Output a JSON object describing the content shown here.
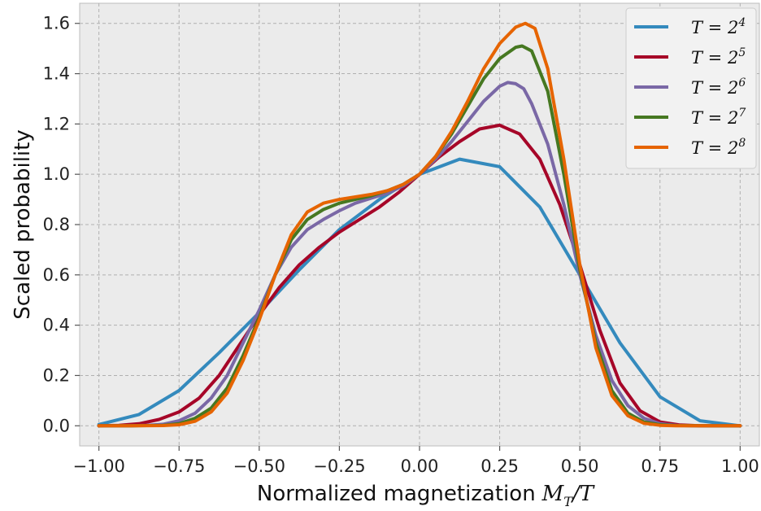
{
  "chart_data": {
    "type": "line",
    "xlabel": "Normalized magnetization",
    "xlabel_math": "M_T/T",
    "ylabel": "Scaled probability",
    "xlim": [
      -1.06,
      1.06
    ],
    "ylim": [
      -0.08,
      1.68
    ],
    "xticks": [
      -1.0,
      -0.75,
      -0.5,
      -0.25,
      0.0,
      0.25,
      0.5,
      0.75,
      1.0
    ],
    "xtick_labels": [
      "−1.00",
      "−0.75",
      "−0.50",
      "−0.25",
      "0.00",
      "0.25",
      "0.50",
      "0.75",
      "1.00"
    ],
    "yticks": [
      0.0,
      0.2,
      0.4,
      0.6,
      0.8,
      1.0,
      1.2,
      1.4,
      1.6
    ],
    "ytick_labels": [
      "0.0",
      "0.2",
      "0.4",
      "0.6",
      "0.8",
      "1.0",
      "1.2",
      "1.4",
      "1.6"
    ],
    "grid": true,
    "legend_position": "top-right",
    "background": "#ebebeb",
    "series": [
      {
        "name": "T = 2^4",
        "legend_base": "T = 2",
        "legend_exp": "4",
        "color": "#348abd",
        "x": [
          -1.0,
          -0.875,
          -0.75,
          -0.625,
          -0.5,
          -0.375,
          -0.25,
          -0.125,
          0.0,
          0.125,
          0.25,
          0.375,
          0.5,
          0.625,
          0.75,
          0.875,
          1.0
        ],
        "y": [
          0.005,
          0.045,
          0.14,
          0.29,
          0.45,
          0.62,
          0.78,
          0.9,
          1.0,
          1.06,
          1.03,
          0.87,
          0.6,
          0.33,
          0.115,
          0.02,
          0.0
        ]
      },
      {
        "name": "T = 2^5",
        "legend_base": "T = 2",
        "legend_exp": "5",
        "color": "#a60628",
        "x": [
          -1.0,
          -0.9375,
          -0.875,
          -0.8125,
          -0.75,
          -0.6875,
          -0.625,
          -0.5625,
          -0.5,
          -0.4375,
          -0.375,
          -0.3125,
          -0.25,
          -0.1875,
          -0.125,
          -0.0625,
          0.0,
          0.0625,
          0.125,
          0.1875,
          0.25,
          0.3125,
          0.375,
          0.4375,
          0.5,
          0.5625,
          0.625,
          0.6875,
          0.75,
          0.8125,
          0.875,
          0.9375,
          1.0
        ],
        "y": [
          0.0,
          0.002,
          0.008,
          0.025,
          0.055,
          0.11,
          0.2,
          0.32,
          0.44,
          0.55,
          0.64,
          0.71,
          0.77,
          0.82,
          0.87,
          0.93,
          1.0,
          1.07,
          1.13,
          1.18,
          1.195,
          1.16,
          1.06,
          0.88,
          0.64,
          0.38,
          0.17,
          0.06,
          0.015,
          0.003,
          0.0,
          0.0,
          0.0
        ]
      },
      {
        "name": "T = 2^6",
        "legend_base": "T = 2",
        "legend_exp": "6",
        "color": "#7a68a6",
        "x": [
          -1.0,
          -0.95,
          -0.9,
          -0.85,
          -0.8,
          -0.75,
          -0.7,
          -0.65,
          -0.6,
          -0.55,
          -0.5,
          -0.45,
          -0.4,
          -0.35,
          -0.3,
          -0.25,
          -0.2,
          -0.15,
          -0.1,
          -0.05,
          0.0,
          0.05,
          0.1,
          0.15,
          0.2,
          0.25,
          0.275,
          0.3,
          0.325,
          0.35,
          0.4,
          0.45,
          0.5,
          0.55,
          0.6,
          0.65,
          0.7,
          0.75,
          0.8,
          0.85,
          0.9,
          0.95,
          1.0
        ],
        "y": [
          0.0,
          0.0,
          0.0,
          0.002,
          0.006,
          0.02,
          0.05,
          0.11,
          0.2,
          0.33,
          0.46,
          0.6,
          0.71,
          0.78,
          0.82,
          0.855,
          0.885,
          0.905,
          0.925,
          0.955,
          1.0,
          1.06,
          1.13,
          1.21,
          1.29,
          1.35,
          1.365,
          1.36,
          1.34,
          1.28,
          1.12,
          0.88,
          0.6,
          0.36,
          0.18,
          0.08,
          0.03,
          0.008,
          0.002,
          0.0,
          0.0,
          0.0,
          0.0
        ]
      },
      {
        "name": "T = 2^7",
        "legend_base": "T = 2",
        "legend_exp": "7",
        "color": "#467821",
        "x": [
          -1.0,
          -0.9,
          -0.8,
          -0.75,
          -0.7,
          -0.65,
          -0.6,
          -0.55,
          -0.5,
          -0.45,
          -0.4,
          -0.35,
          -0.3,
          -0.25,
          -0.2,
          -0.15,
          -0.1,
          -0.05,
          0.0,
          0.05,
          0.1,
          0.15,
          0.2,
          0.25,
          0.3,
          0.32,
          0.35,
          0.4,
          0.45,
          0.5,
          0.55,
          0.6,
          0.65,
          0.7,
          0.75,
          0.8,
          0.9,
          1.0
        ],
        "y": [
          0.0,
          0.0,
          0.002,
          0.008,
          0.03,
          0.07,
          0.15,
          0.28,
          0.43,
          0.6,
          0.74,
          0.82,
          0.86,
          0.885,
          0.9,
          0.915,
          0.935,
          0.96,
          1.0,
          1.07,
          1.16,
          1.27,
          1.38,
          1.46,
          1.505,
          1.51,
          1.49,
          1.33,
          1.0,
          0.62,
          0.33,
          0.14,
          0.05,
          0.015,
          0.004,
          0.001,
          0.0,
          0.0
        ]
      },
      {
        "name": "T = 2^8",
        "legend_base": "T = 2",
        "legend_exp": "8",
        "color": "#e66400",
        "x": [
          -1.0,
          -0.9,
          -0.8,
          -0.75,
          -0.7,
          -0.65,
          -0.6,
          -0.55,
          -0.5,
          -0.45,
          -0.4,
          -0.35,
          -0.3,
          -0.25,
          -0.2,
          -0.15,
          -0.1,
          -0.05,
          0.0,
          0.05,
          0.1,
          0.15,
          0.2,
          0.25,
          0.3,
          0.33,
          0.36,
          0.4,
          0.45,
          0.5,
          0.55,
          0.6,
          0.65,
          0.7,
          0.75,
          0.8,
          0.9,
          1.0
        ],
        "y": [
          0.0,
          0.0,
          0.001,
          0.004,
          0.018,
          0.055,
          0.13,
          0.26,
          0.42,
          0.6,
          0.76,
          0.85,
          0.885,
          0.9,
          0.91,
          0.92,
          0.935,
          0.96,
          1.0,
          1.07,
          1.17,
          1.29,
          1.42,
          1.52,
          1.585,
          1.6,
          1.58,
          1.42,
          1.06,
          0.64,
          0.31,
          0.12,
          0.04,
          0.01,
          0.002,
          0.0,
          0.0,
          0.0
        ]
      }
    ]
  }
}
